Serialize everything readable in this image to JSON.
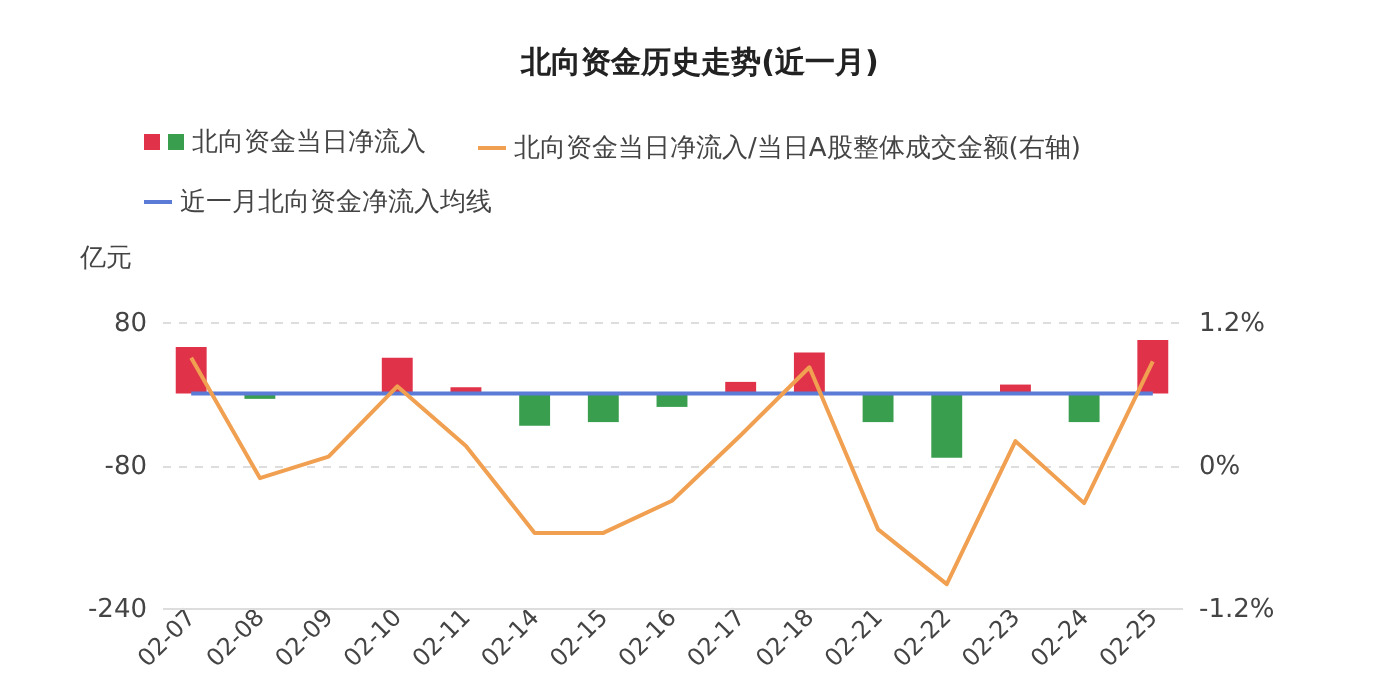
{
  "chart_data": {
    "type": "bar",
    "title": "北向资金历史走势(近一月)",
    "ylabel": "亿元",
    "categories": [
      "02-07",
      "02-08",
      "02-09",
      "02-10",
      "02-11",
      "02-14",
      "02-15",
      "02-16",
      "02-17",
      "02-18",
      "02-21",
      "02-22",
      "02-23",
      "02-24",
      "02-25"
    ],
    "series": [
      {
        "name": "北向资金当日净流入",
        "colors": [
          "#e0334a",
          "#3a9e4f",
          "#3a9e4f",
          "#e0334a",
          "#e0334a",
          "#3a9e4f",
          "#3a9e4f",
          "#3a9e4f",
          "#e0334a",
          "#e0334a",
          "#3a9e4f",
          "#3a9e4f",
          "#e0334a",
          "#3a9e4f",
          "#e0334a"
        ],
        "values": [
          52,
          -6,
          null,
          40,
          7,
          -36,
          -32,
          -15,
          13,
          46,
          -32,
          -72,
          10,
          -32,
          60
        ]
      },
      {
        "name": "北向资金当日净流入/当日A股整体成交金额(右轴)",
        "type": "line",
        "axis": "y2",
        "color": "#f0a050",
        "values": [
          0.9,
          -0.11,
          0.07,
          0.66,
          0.16,
          -0.57,
          -0.57,
          -0.3,
          0.25,
          0.82,
          -0.54,
          -1.0,
          0.2,
          -0.32,
          0.87
        ]
      },
      {
        "name": "近一月北向资金净流入均线",
        "type": "line",
        "color": "#5b7bd6",
        "values": [
          0,
          0,
          0,
          0,
          0,
          0,
          0,
          0,
          0,
          0,
          0,
          0,
          0,
          0,
          0
        ]
      }
    ],
    "ylim": [
      -240,
      80
    ],
    "yticks": [
      -240,
      -80,
      80
    ],
    "y2lim": [
      -1.2,
      1.2
    ],
    "y2ticks": [
      {
        "value": -1.2,
        "label": "-1.2%"
      },
      {
        "value": 0,
        "label": "0%"
      },
      {
        "value": 1.2,
        "label": "1.2%"
      }
    ],
    "grid": "y",
    "legend": "top"
  }
}
